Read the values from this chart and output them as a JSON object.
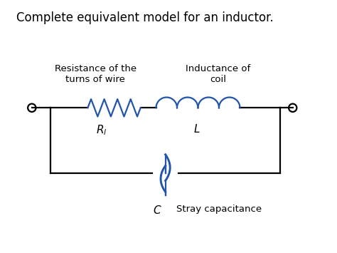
{
  "title": "Complete equivalent model for an inductor.",
  "title_fontsize": 12,
  "component_color": "#2255aa",
  "wire_color": "#000000",
  "label_color": "#000000",
  "bg_color": "#ffffff",
  "figsize": [
    4.74,
    3.55
  ],
  "dpi": 100,
  "label_resistance": "Resistance of the\nturns of wire",
  "label_inductance": "Inductance of\ncoil",
  "label_capacitance": "Stray capacitance",
  "symbol_R": "$R_l$",
  "symbol_L": "$L$",
  "symbol_C": "$C$"
}
